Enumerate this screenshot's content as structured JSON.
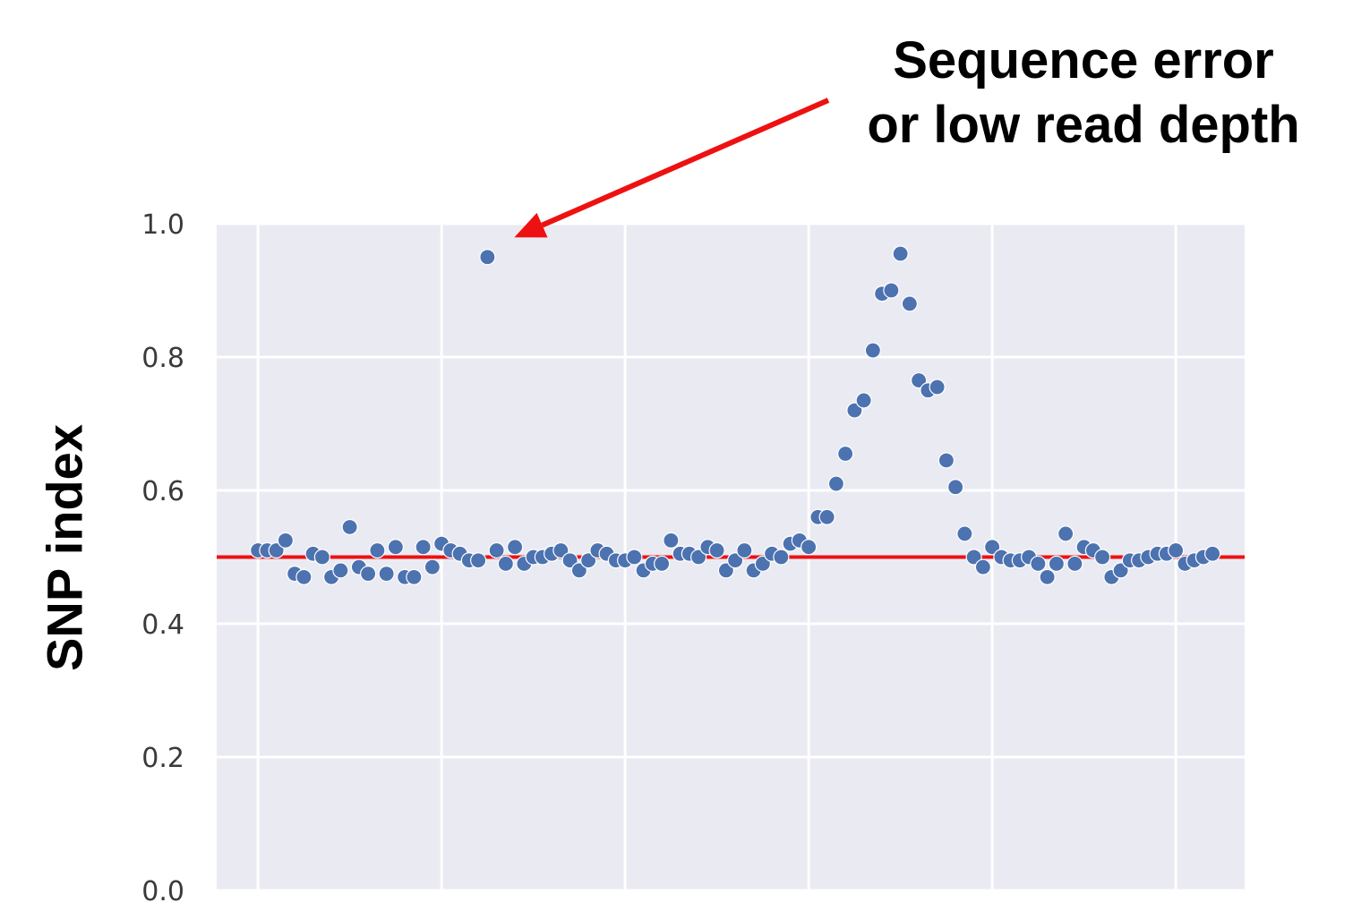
{
  "annotation": {
    "line1": "Sequence error",
    "line2": "or low read depth",
    "arrow_color": "#ee1111"
  },
  "chart_data": {
    "type": "scatter",
    "title": "",
    "xlabel": "",
    "ylabel": "SNP index",
    "ylim": [
      0.0,
      1.0
    ],
    "yticks": [
      "0.0",
      "0.2",
      "0.4",
      "0.6",
      "0.8",
      "1.0"
    ],
    "xticks_labels": [],
    "grid": true,
    "background": "#eaeaf2",
    "point_color": "#4c72b0",
    "reference_line": {
      "y": 0.5,
      "color": "#ee1111"
    },
    "series": [
      {
        "x": [
          1,
          2,
          3,
          4,
          5,
          6,
          7,
          8,
          9,
          10,
          11,
          12,
          13,
          14,
          15,
          16,
          17,
          18,
          19,
          20,
          21,
          22,
          23,
          24,
          25,
          26,
          27,
          28,
          29,
          30,
          31,
          32,
          33,
          34,
          35,
          36,
          37,
          38,
          39,
          40,
          41,
          42,
          43,
          44,
          45,
          46,
          47,
          48,
          49,
          50,
          51,
          52,
          53,
          54,
          55,
          56,
          57,
          58,
          59,
          60,
          61,
          62,
          63,
          64,
          65,
          66,
          67,
          68,
          69,
          70,
          71,
          72,
          73,
          74,
          75,
          76,
          77,
          78,
          79,
          80,
          81,
          82,
          83,
          84,
          85,
          86,
          87,
          88,
          89,
          90,
          91,
          92,
          93,
          94,
          95,
          96,
          97,
          98,
          99,
          100,
          101,
          102,
          103,
          104,
          105
        ],
        "y": [
          0.51,
          0.51,
          0.51,
          0.525,
          0.475,
          0.47,
          0.505,
          0.5,
          0.47,
          0.48,
          0.545,
          0.485,
          0.475,
          0.51,
          0.475,
          0.515,
          0.47,
          0.47,
          0.515,
          0.485,
          0.52,
          0.51,
          0.505,
          0.495,
          0.495,
          0.95,
          0.51,
          0.49,
          0.515,
          0.49,
          0.5,
          0.5,
          0.505,
          0.51,
          0.495,
          0.48,
          0.495,
          0.51,
          0.505,
          0.495,
          0.495,
          0.5,
          0.48,
          0.49,
          0.49,
          0.525,
          0.505,
          0.505,
          0.5,
          0.515,
          0.51,
          0.48,
          0.495,
          0.51,
          0.48,
          0.49,
          0.505,
          0.5,
          0.52,
          0.525,
          0.515,
          0.56,
          0.56,
          0.61,
          0.655,
          0.72,
          0.735,
          0.81,
          0.895,
          0.9,
          0.955,
          0.88,
          0.765,
          0.75,
          0.755,
          0.645,
          0.605,
          0.535,
          0.5,
          0.485,
          0.515,
          0.5,
          0.495,
          0.495,
          0.5,
          0.49,
          0.47,
          0.49,
          0.535,
          0.49,
          0.515,
          0.51,
          0.5,
          0.47,
          0.48,
          0.495,
          0.495,
          0.5,
          0.505,
          0.505,
          0.51,
          0.49,
          0.495,
          0.5,
          0.505
        ]
      }
    ]
  }
}
